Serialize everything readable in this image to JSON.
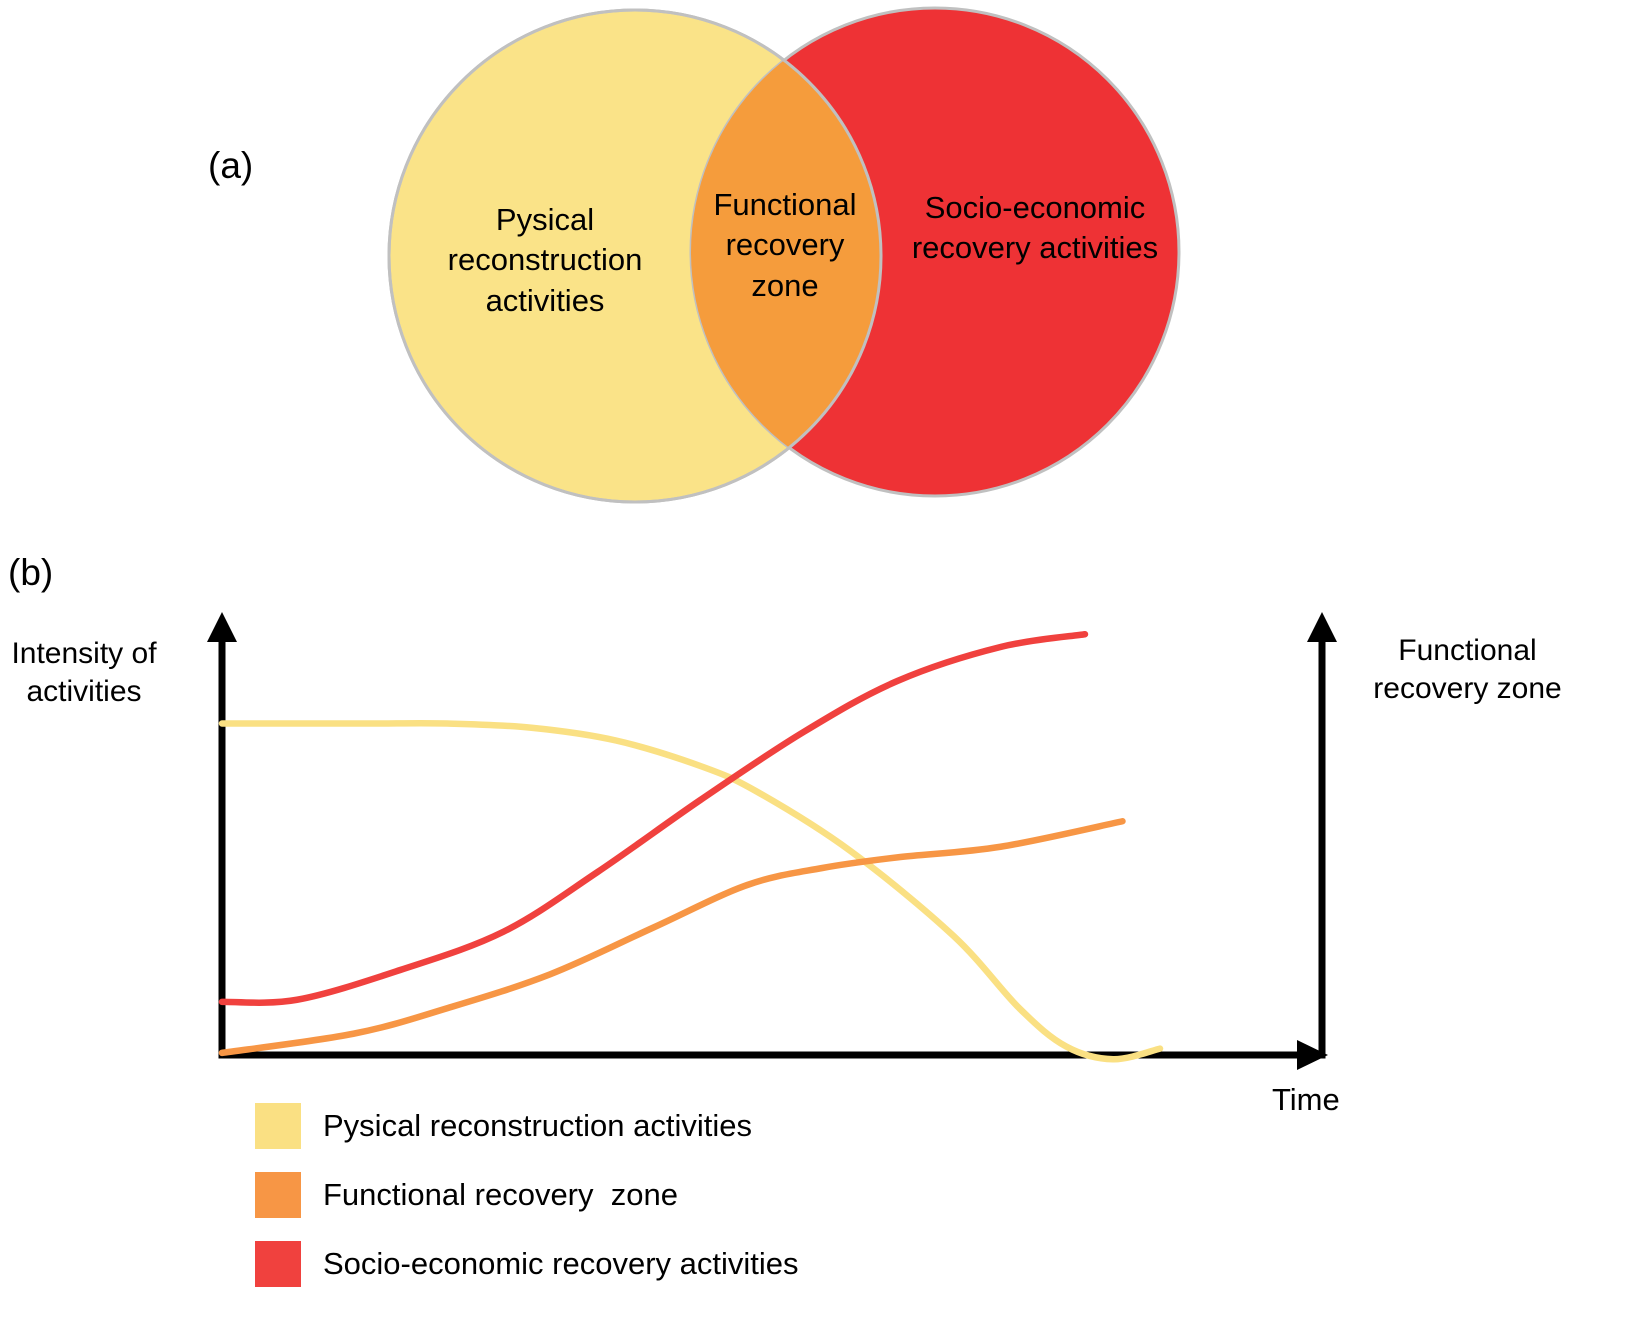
{
  "figure": {
    "panel_a": {
      "label": "(a)",
      "venn": {
        "left_label": "Pysical reconstruction activities",
        "overlap_label": "Functional recovery zone",
        "right_label": "Socio-economic recovery activities",
        "left_color": "#FAE388",
        "overlap_color": "#F59C3C",
        "right_color": "#EE3235",
        "outline_color": "#C0C0C0"
      }
    },
    "panel_b": {
      "label": "(b)",
      "left_axis_label": "Intensity of activities",
      "right_axis_label": "Functional recovery zone",
      "x_axis_label": "Time",
      "legend": [
        {
          "label": "Pysical reconstruction activities",
          "color": "#FAE083"
        },
        {
          "label": "Functional recovery  zone",
          "color": "#F79645"
        },
        {
          "label": "Socio-economic recovery activities",
          "color": "#F0413E"
        }
      ]
    }
  },
  "chart_data": {
    "type": "line",
    "title": "",
    "xlabel": "Time",
    "ylabel_left": "Intensity of activities",
    "ylabel_right": "Functional recovery zone",
    "axes_numeric": false,
    "grid": false,
    "legend_position": "below",
    "x_range": [
      0,
      1
    ],
    "y_range": [
      0,
      1
    ],
    "series": [
      {
        "id": "physical-reconstruction",
        "name": "Pysical reconstruction activities",
        "color": "#FAE083",
        "x": [
          0,
          0.08,
          0.16,
          0.24,
          0.33,
          0.42,
          0.51,
          0.57,
          0.67,
          0.78,
          0.85,
          0.9,
          0.95,
          1.0
        ],
        "values": [
          0.78,
          0.78,
          0.78,
          0.78,
          0.77,
          0.74,
          0.68,
          0.62,
          0.48,
          0.28,
          0.11,
          0.02,
          -0.01,
          0.015
        ]
      },
      {
        "id": "functional-recovery",
        "name": "Functional recovery zone",
        "color": "#F79645",
        "x": [
          0,
          0.14,
          0.24,
          0.35,
          0.46,
          0.56,
          0.64,
          0.72,
          0.83,
          0.96
        ],
        "values": [
          0.005,
          0.05,
          0.11,
          0.19,
          0.3,
          0.4,
          0.44,
          0.465,
          0.49,
          0.55
        ]
      },
      {
        "id": "socio-economic-recovery",
        "name": "Socio-economic recovery activities",
        "color": "#F0413E",
        "x": [
          0,
          0.08,
          0.19,
          0.3,
          0.4,
          0.51,
          0.62,
          0.72,
          0.83,
          0.92
        ],
        "values": [
          0.125,
          0.13,
          0.2,
          0.29,
          0.43,
          0.6,
          0.76,
          0.88,
          0.96,
          0.99
        ]
      }
    ]
  }
}
